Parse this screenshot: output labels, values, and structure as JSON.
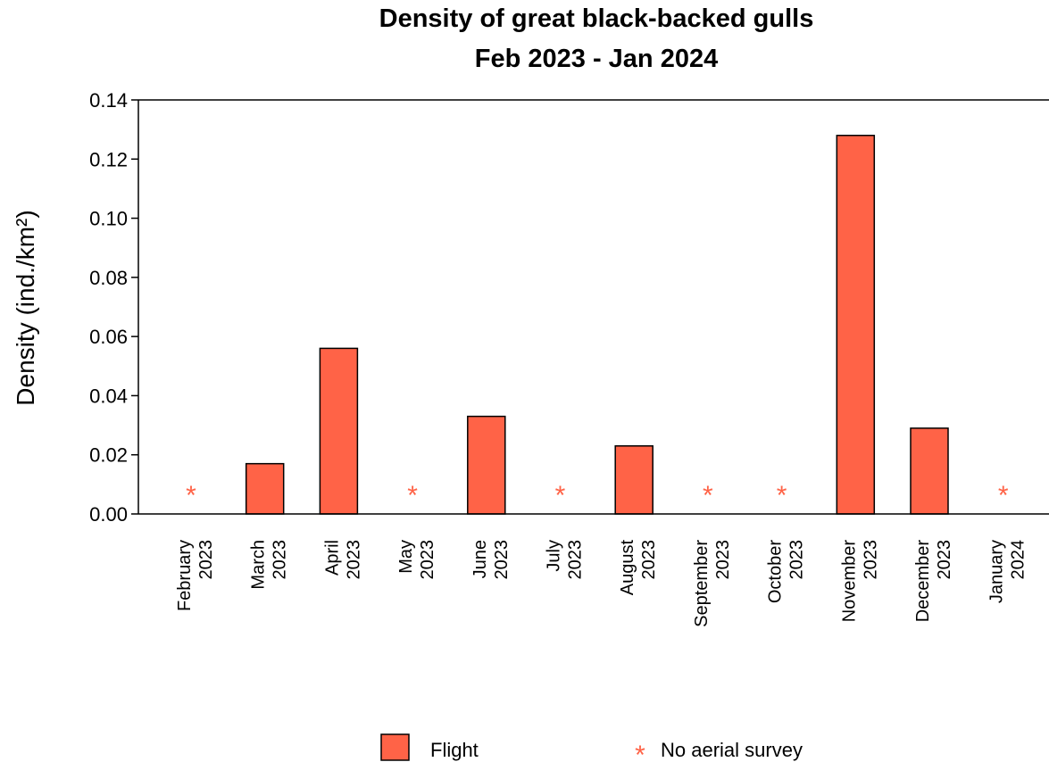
{
  "chart_data": {
    "type": "bar",
    "title": "Density of great black-backed gulls",
    "subtitle": "Feb 2023 - Jan 2024",
    "ylabel": "Density (ind./km²)",
    "xlabel": "",
    "ylim": [
      0,
      0.14
    ],
    "yticks": [
      "0.00",
      "0.02",
      "0.04",
      "0.06",
      "0.08",
      "0.10",
      "0.12",
      "0.14"
    ],
    "categories": [
      {
        "month": "February",
        "year": "2023"
      },
      {
        "month": "March",
        "year": "2023"
      },
      {
        "month": "April",
        "year": "2023"
      },
      {
        "month": "May",
        "year": "2023"
      },
      {
        "month": "June",
        "year": "2023"
      },
      {
        "month": "July",
        "year": "2023"
      },
      {
        "month": "August",
        "year": "2023"
      },
      {
        "month": "September",
        "year": "2023"
      },
      {
        "month": "October",
        "year": "2023"
      },
      {
        "month": "November",
        "year": "2023"
      },
      {
        "month": "December",
        "year": "2023"
      },
      {
        "month": "January",
        "year": "2024"
      }
    ],
    "series": [
      {
        "name": "Flight",
        "color": "#ff6347",
        "values": [
          null,
          0.017,
          0.056,
          null,
          0.033,
          null,
          0.023,
          null,
          null,
          0.128,
          0.029,
          null
        ]
      }
    ],
    "no_survey_marker": {
      "symbol": "*",
      "label": "No aerial survey",
      "color": "#ff6347",
      "months": [
        0,
        3,
        5,
        7,
        8,
        11
      ]
    },
    "legend_position": "bottom",
    "grid": false
  }
}
